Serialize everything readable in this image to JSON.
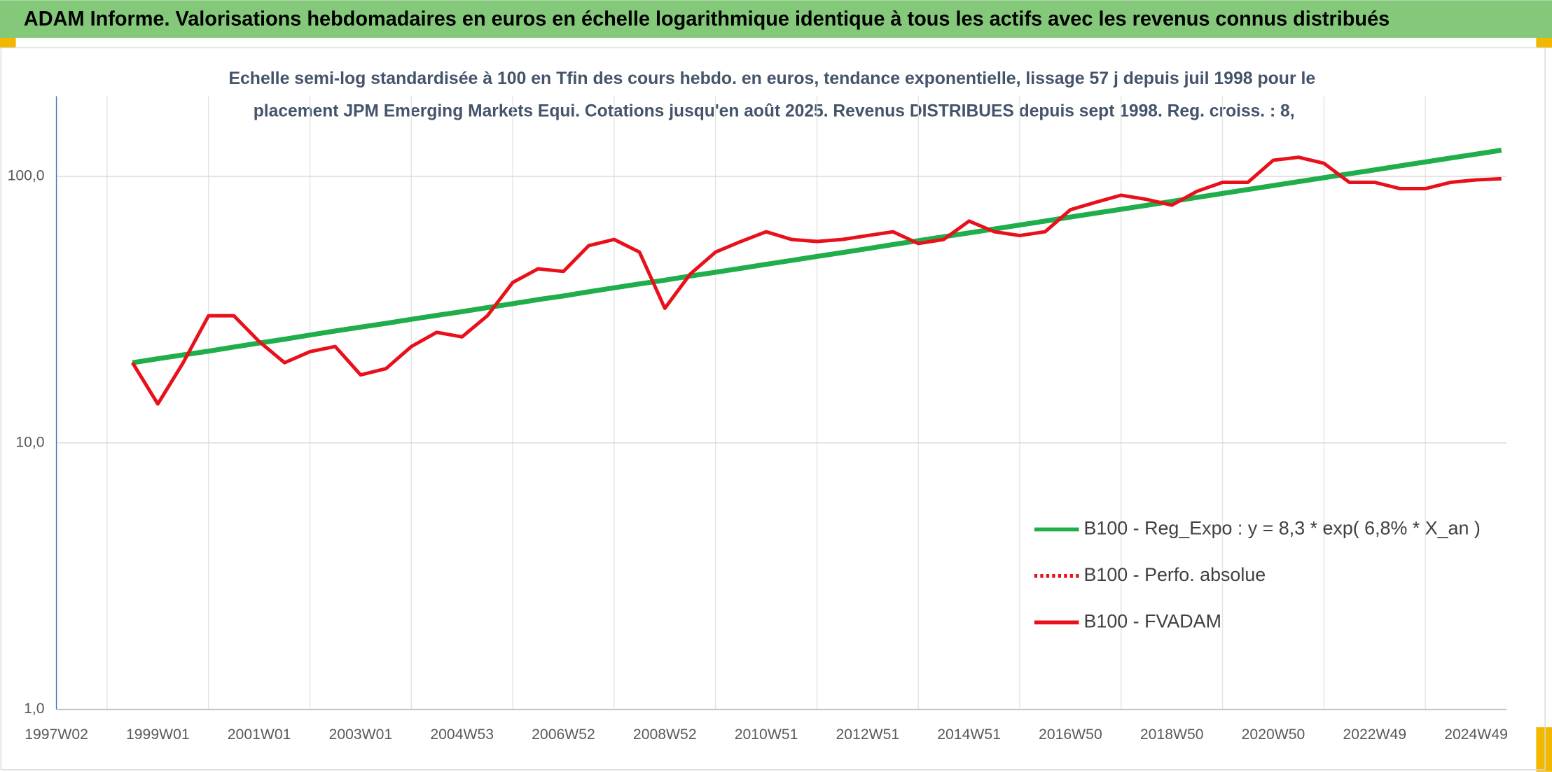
{
  "chart_data": {
    "type": "line",
    "title": "ADAM Informe. Valorisations hebdomadaires en euros en échelle logarithmique identique à tous les actifs avec les revenus connus distribués",
    "subtitle": [
      "Echelle semi-log standardisée à 100 en Tfin des cours hebdo. en euros, tendance exponentielle, lissage 57 j depuis juil 1998 pour le",
      "placement JPM Emerging Markets Equi. Cotations jusqu'en août 2025. Revenus DISTRIBUES depuis sept 1998. Reg. croiss. : 8,"
    ],
    "categories": [
      "1997W02",
      null,
      null,
      null,
      "1999W01",
      null,
      null,
      null,
      "2001W01",
      null,
      null,
      null,
      "2003W01",
      null,
      null,
      null,
      "2004W53",
      null,
      null,
      null,
      "2006W52",
      null,
      null,
      null,
      "2008W52",
      null,
      null,
      null,
      "2010W51",
      null,
      null,
      null,
      "2012W51",
      null,
      null,
      null,
      "2014W51",
      null,
      null,
      null,
      "2016W50",
      null,
      null,
      null,
      "2018W50",
      null,
      null,
      null,
      "2020W50",
      null,
      null,
      null,
      "2022W49",
      null,
      null,
      null,
      "2024W49",
      null
    ],
    "log_scale": true,
    "ylim": [
      1,
      200
    ],
    "yticks": [
      {
        "value": 1,
        "label": "1,0"
      },
      {
        "value": 10,
        "label": "10,0"
      },
      {
        "value": 100,
        "label": "100,0"
      }
    ],
    "grid": true,
    "legend": "right",
    "series": [
      {
        "name": "B100 - Reg_Expo : y = 8,3 * exp( 6,8% *  X_an )",
        "color": "#1fae4b",
        "dash": "solid",
        "values": [
          null,
          null,
          null,
          20.0,
          20.7,
          21.4,
          22.1,
          22.9,
          23.7,
          24.5,
          25.4,
          26.3,
          27.2,
          28.1,
          29.1,
          30.1,
          31.1,
          32.2,
          33.3,
          34.5,
          35.6,
          36.9,
          38.2,
          39.5,
          40.8,
          42.3,
          43.7,
          45.2,
          46.8,
          48.4,
          50.1,
          51.8,
          53.6,
          55.5,
          57.4,
          59.4,
          61.4,
          63.5,
          65.7,
          68.0,
          70.4,
          72.8,
          75.3,
          77.9,
          80.6,
          83.4,
          86.3,
          89.3,
          92.4,
          95.6,
          98.9,
          102.3,
          105.8,
          109.5,
          113.3,
          117.2,
          121.2,
          125.4
        ]
      },
      {
        "name": "B100 - Perfo. absolue",
        "color": "#e8101a",
        "dash": "dotted",
        "values": [
          null,
          null,
          null,
          null,
          null,
          null,
          null,
          null,
          null,
          null,
          null,
          null,
          null,
          null,
          null,
          null,
          null,
          null,
          null,
          null,
          null,
          null,
          null,
          null,
          null,
          null,
          null,
          null,
          null,
          null,
          null,
          null,
          null,
          null,
          null,
          null,
          null,
          null,
          null,
          null,
          null,
          null,
          null,
          null,
          null,
          null,
          null,
          null,
          null,
          null,
          null,
          null,
          null,
          null,
          null,
          null,
          null,
          null
        ]
      },
      {
        "name": "B100 - FVADAM",
        "color": "#e8101a",
        "dash": "solid",
        "values": [
          null,
          null,
          null,
          20,
          14,
          20,
          30,
          30,
          24,
          20,
          22,
          23,
          18,
          19,
          23,
          26,
          25,
          30,
          40,
          45,
          44,
          55,
          58,
          52,
          32,
          43,
          52,
          57,
          62,
          58,
          57,
          58,
          60,
          62,
          56,
          58,
          68,
          62,
          60,
          62,
          75,
          80,
          85,
          82,
          78,
          88,
          95,
          95,
          115,
          118,
          112,
          95,
          95,
          90,
          90,
          95,
          97,
          98
        ]
      }
    ]
  }
}
